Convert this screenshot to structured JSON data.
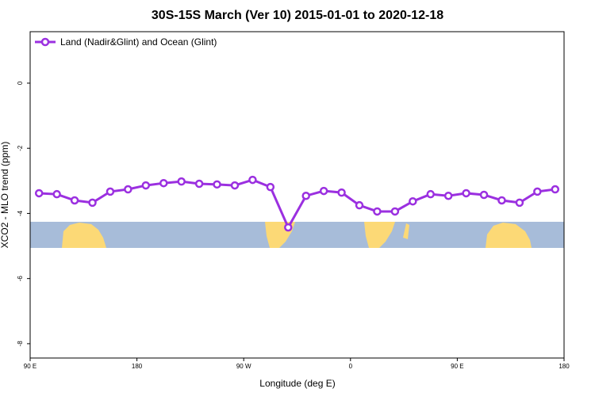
{
  "chart_data": {
    "type": "line",
    "title": "30S-15S March (Ver 10)   2015-01-01 to 2020-12-18",
    "x_label": "Longitude (deg E)",
    "y_label": "XCO2 - MLO trend (ppm)",
    "x": [
      97.5,
      112.5,
      127.5,
      142.5,
      157.5,
      172.5,
      187.5,
      202.5,
      217.5,
      232.5,
      247.5,
      262.5,
      277.5,
      292.5,
      307.5,
      322.5,
      337.5,
      352.5,
      367.5,
      382.5,
      397.5,
      412.5,
      427.5,
      442.5,
      457.5,
      472.5,
      487.5,
      502.5,
      517.5,
      532.5
    ],
    "series": [
      {
        "name": "Land (Nadir&Glint) and Ocean (Glint)",
        "color": "#9b30e0",
        "values": [
          -3.38,
          -3.41,
          -3.6,
          -3.67,
          -3.33,
          -3.26,
          -3.14,
          -3.07,
          -3.02,
          -3.09,
          -3.11,
          -3.14,
          -2.97,
          -3.19,
          -4.43,
          -3.46,
          -3.31,
          -3.36,
          -3.75,
          -3.94,
          -3.94,
          -3.63,
          -3.41,
          -3.46,
          -3.38,
          -3.43,
          -3.6,
          -3.67,
          -3.33,
          -3.26
        ]
      }
    ],
    "xlim": [
      90,
      540
    ],
    "xticks": [
      {
        "value": 90,
        "label": "90 E"
      },
      180,
      {
        "value": 270,
        "label": "90 W"
      },
      {
        "value": 360,
        "label": "0"
      },
      {
        "value": 450,
        "label": "90 E"
      },
      {
        "value": 540,
        "label": "180"
      }
    ],
    "ylim": [
      -8.44,
      1.58
    ],
    "yticks": [
      0,
      -2,
      -4,
      -6,
      -8
    ],
    "legend": "top-left"
  }
}
